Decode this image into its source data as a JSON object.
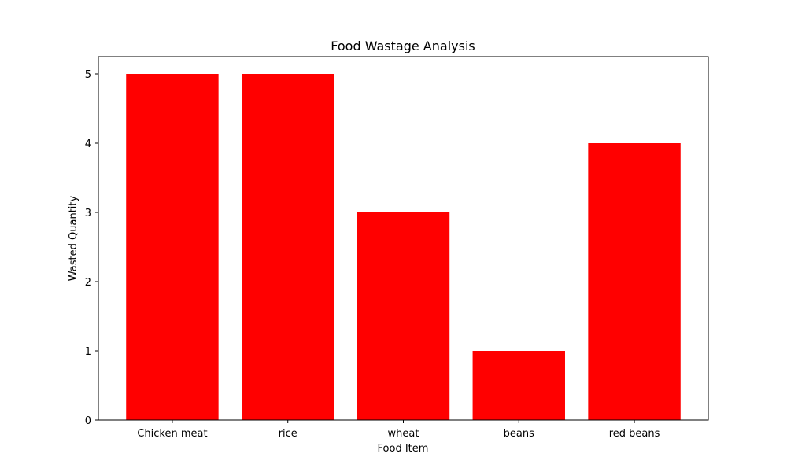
{
  "chart_data": {
    "type": "bar",
    "title": "Food Wastage Analysis",
    "xlabel": "Food Item",
    "ylabel": "Wasted Quantity",
    "categories": [
      "Chicken meat",
      "rice",
      "wheat",
      "beans",
      "red beans"
    ],
    "values": [
      5,
      5,
      3,
      1,
      4
    ],
    "ylim": [
      0,
      5.25
    ],
    "yticks": [
      0,
      1,
      2,
      3,
      4,
      5
    ],
    "ytick_labels": [
      "0",
      "1",
      "2",
      "3",
      "4",
      "5"
    ],
    "grid": false,
    "legend": "none",
    "bar_color": "#ff0000"
  }
}
